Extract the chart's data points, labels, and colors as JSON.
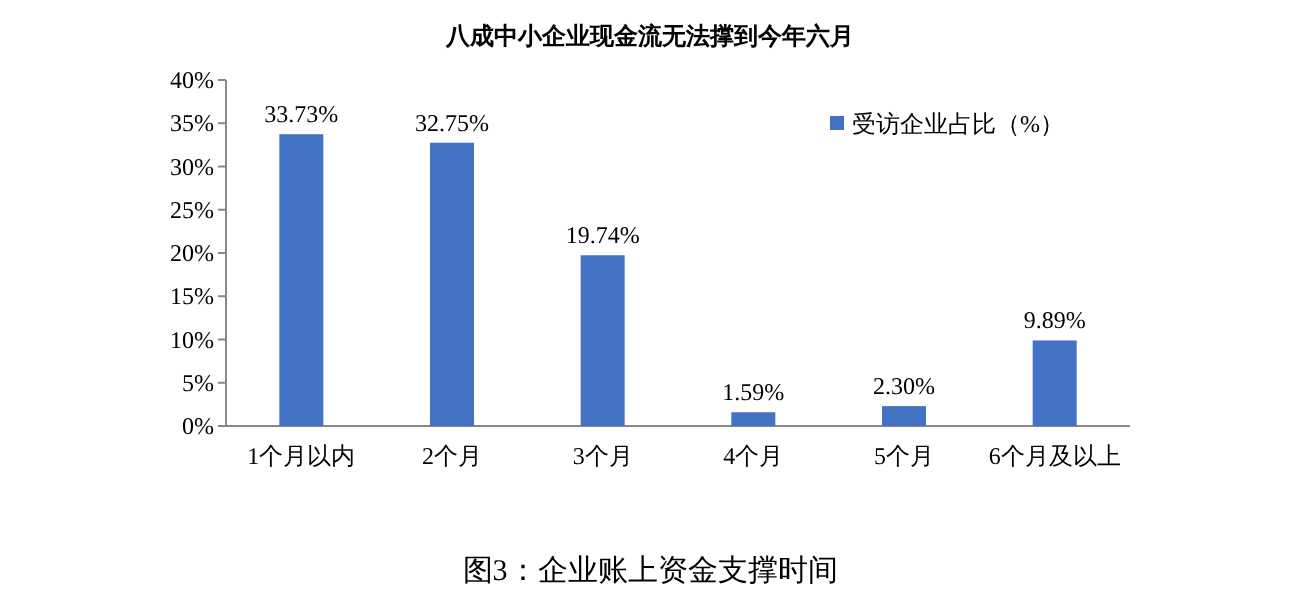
{
  "chart_data": {
    "type": "bar",
    "title": "八成中小企业现金流无法撑到今年六月",
    "categories": [
      "1个月以内",
      "2个月",
      "3个月",
      "4个月",
      "5个月",
      "6个月及以上"
    ],
    "series": [
      {
        "name": "受访企业占比（%）",
        "color": "#4472c4",
        "values": [
          33.73,
          32.75,
          19.74,
          1.59,
          2.3,
          9.89
        ],
        "value_labels": [
          "33.73%",
          "32.75%",
          "19.74%",
          "1.59%",
          "2.30%",
          "9.89%"
        ]
      }
    ],
    "ylim": [
      0,
      40
    ],
    "yticks": [
      {
        "value": 0,
        "label": "0%"
      },
      {
        "value": 5,
        "label": "5%"
      },
      {
        "value": 10,
        "label": "10%"
      },
      {
        "value": 15,
        "label": "15%"
      },
      {
        "value": 20,
        "label": "20%"
      },
      {
        "value": 25,
        "label": "25%"
      },
      {
        "value": 30,
        "label": "30%"
      },
      {
        "value": 35,
        "label": "35%"
      },
      {
        "value": 40,
        "label": "40%"
      }
    ],
    "legend": "top right",
    "grid": false,
    "annotations": [
      "图3：企业账上资金支撑时间"
    ]
  }
}
